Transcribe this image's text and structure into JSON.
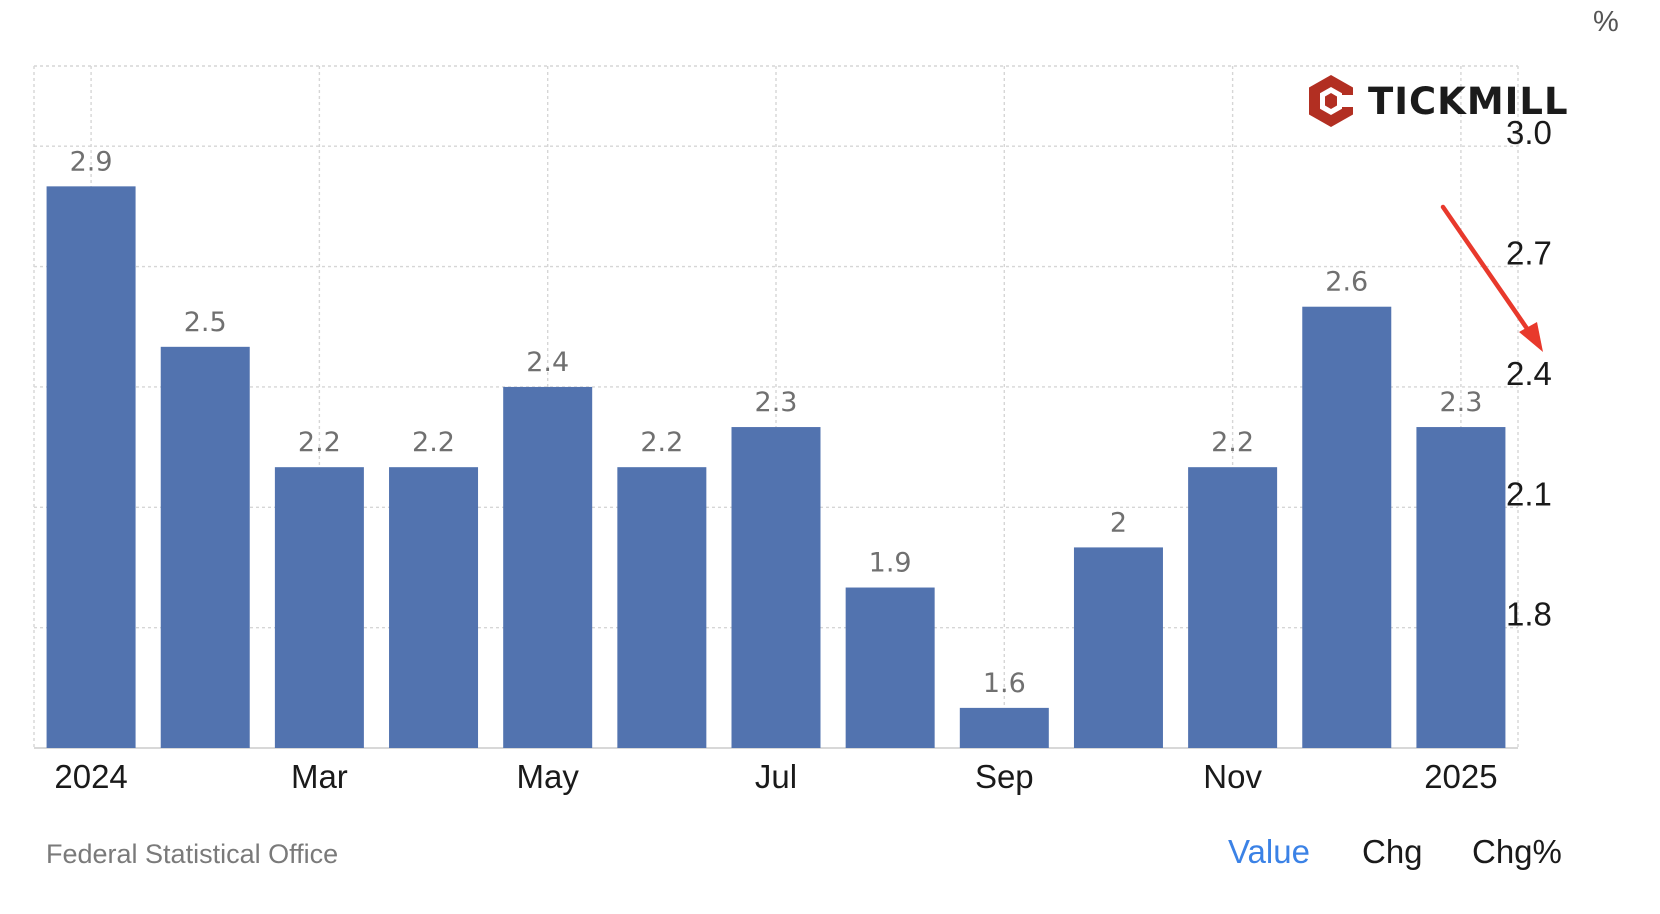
{
  "chart_data": {
    "type": "bar",
    "categories": [
      "2024-01",
      "2024-02",
      "2024-03",
      "2024-04",
      "2024-05",
      "2024-06",
      "2024-07",
      "2024-08",
      "2024-09",
      "2024-10",
      "2024-11",
      "2024-12",
      "2025-01"
    ],
    "values": [
      2.9,
      2.5,
      2.2,
      2.2,
      2.4,
      2.2,
      2.3,
      1.9,
      1.6,
      2,
      2.2,
      2.6,
      2.3
    ],
    "value_labels": [
      "2.9",
      "2.5",
      "2.2",
      "2.2",
      "2.4",
      "2.2",
      "2.3",
      "1.9",
      "1.6",
      "2",
      "2.2",
      "2.6",
      "2.3"
    ],
    "x_tick_labels": [
      {
        "category": "2024-01",
        "label": "2024"
      },
      {
        "category": "2024-03",
        "label": "Mar"
      },
      {
        "category": "2024-05",
        "label": "May"
      },
      {
        "category": "2024-07",
        "label": "Jul"
      },
      {
        "category": "2024-09",
        "label": "Sep"
      },
      {
        "category": "2024-11",
        "label": "Nov"
      },
      {
        "category": "2025-01",
        "label": "2025"
      }
    ],
    "y_ticks": [
      "1.8",
      "2.1",
      "2.4",
      "2.7",
      "3.0"
    ],
    "y_unit": "%",
    "ylim": [
      1.5,
      3.2
    ],
    "y_axis_position": "right",
    "grid": true,
    "bar_color": "#5273AF",
    "annotation": {
      "type": "arrow",
      "color": "#E8392C",
      "points_to": "2025-01"
    }
  },
  "source": "Federal Statistical Office",
  "logo": {
    "text": "TICKMILL",
    "icon": "tickmill-hexagon-icon",
    "color": "#B22F22"
  },
  "toggles": [
    {
      "label": "Value",
      "active": true
    },
    {
      "label": "Chg",
      "active": false
    },
    {
      "label": "Chg%",
      "active": false
    }
  ],
  "accent_color": "#3b82e6"
}
